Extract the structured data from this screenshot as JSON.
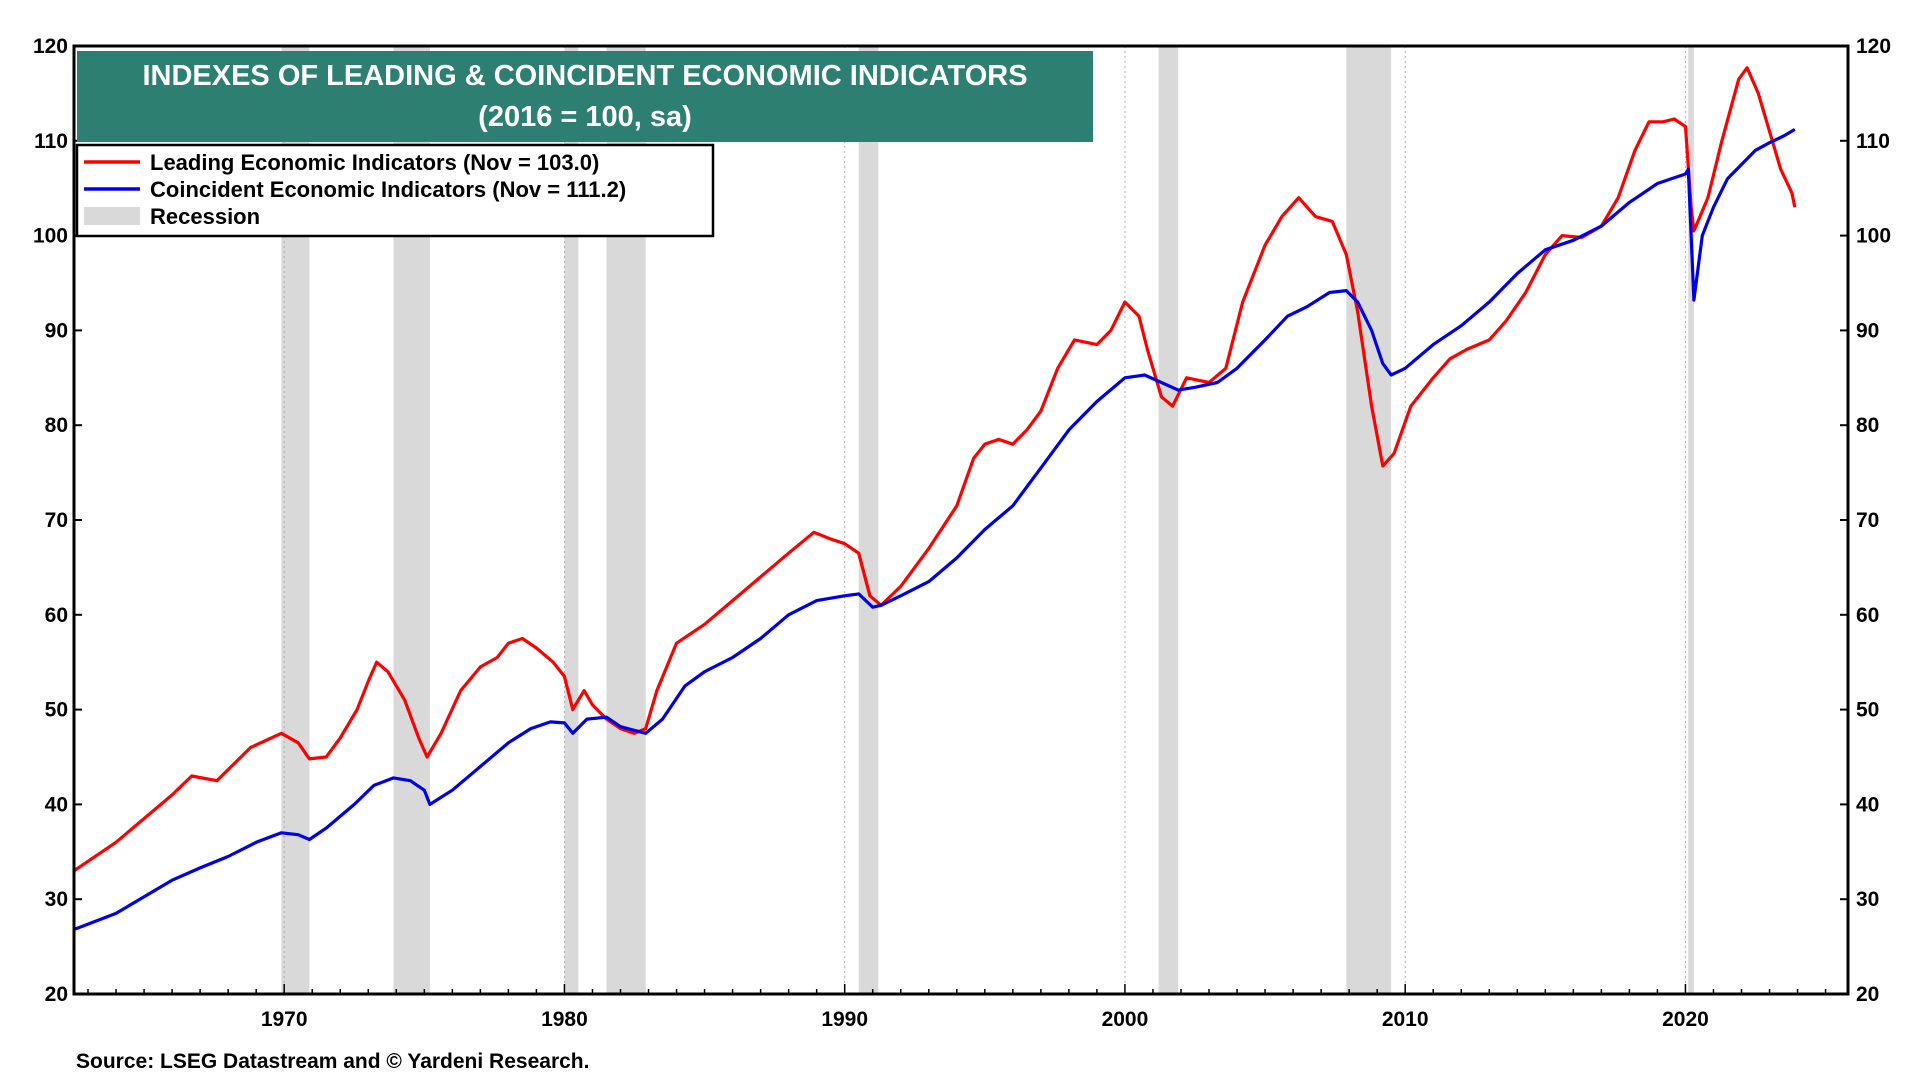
{
  "chart_data": {
    "type": "line",
    "title": "INDEXES OF LEADING & COINCIDENT ECONOMIC INDICATORS",
    "subtitle": "(2016 = 100, sa)",
    "xlabel": "",
    "ylabel": "",
    "xlim": [
      1962.5,
      2025.8
    ],
    "ylim": [
      20,
      120
    ],
    "y_ticks": [
      20,
      30,
      40,
      50,
      60,
      70,
      80,
      90,
      100,
      110,
      120
    ],
    "x_ticks": [
      1970,
      1980,
      1990,
      2000,
      2010,
      2020
    ],
    "x_tick_labels": [
      "1970",
      "1980",
      "1990",
      "2000",
      "2010",
      "2020"
    ],
    "grid": true,
    "legend_position": "top-left",
    "recession_label": "Recession",
    "recession_color": "#d9d9d9",
    "recessions": [
      [
        1969.9,
        1970.9
      ],
      [
        1973.9,
        1975.2
      ],
      [
        1980.0,
        1980.5
      ],
      [
        1981.5,
        1982.9
      ],
      [
        1990.5,
        1991.2
      ],
      [
        2001.2,
        2001.9
      ],
      [
        2007.9,
        2009.5
      ],
      [
        2020.1,
        2020.3
      ]
    ],
    "series": [
      {
        "name": "Leading Economic Indicators (Nov = 103.0)",
        "color": "#ff0000",
        "points": [
          [
            1962.5,
            33.0
          ],
          [
            1964,
            36.0
          ],
          [
            1966,
            41.0
          ],
          [
            1966.7,
            43.0
          ],
          [
            1967.6,
            42.5
          ],
          [
            1968.8,
            46.0
          ],
          [
            1969.9,
            47.5
          ],
          [
            1970.5,
            46.5
          ],
          [
            1970.9,
            44.8
          ],
          [
            1971.5,
            45.0
          ],
          [
            1972.0,
            47.0
          ],
          [
            1972.6,
            50.0
          ],
          [
            1973.0,
            53.0
          ],
          [
            1973.3,
            55.0
          ],
          [
            1973.7,
            54.0
          ],
          [
            1974.3,
            51.0
          ],
          [
            1974.8,
            47.0
          ],
          [
            1975.1,
            45.0
          ],
          [
            1975.6,
            47.5
          ],
          [
            1976.3,
            52.0
          ],
          [
            1977.0,
            54.5
          ],
          [
            1977.6,
            55.5
          ],
          [
            1978.0,
            57.0
          ],
          [
            1978.5,
            57.5
          ],
          [
            1979.0,
            56.5
          ],
          [
            1979.6,
            55.0
          ],
          [
            1980.0,
            53.5
          ],
          [
            1980.3,
            50.0
          ],
          [
            1980.7,
            52.0
          ],
          [
            1981.0,
            50.5
          ],
          [
            1981.5,
            49.0
          ],
          [
            1982.0,
            48.0
          ],
          [
            1982.5,
            47.5
          ],
          [
            1982.9,
            48.0
          ],
          [
            1983.3,
            52.0
          ],
          [
            1984.0,
            57.0
          ],
          [
            1985.0,
            59.0
          ],
          [
            1986.0,
            61.5
          ],
          [
            1987.0,
            64.0
          ],
          [
            1988.0,
            66.5
          ],
          [
            1988.9,
            68.7
          ],
          [
            1989.5,
            68.0
          ],
          [
            1990.0,
            67.5
          ],
          [
            1990.5,
            66.5
          ],
          [
            1990.9,
            62.0
          ],
          [
            1991.3,
            61.0
          ],
          [
            1992.0,
            63.0
          ],
          [
            1993.0,
            67.0
          ],
          [
            1994.0,
            71.5
          ],
          [
            1994.6,
            76.5
          ],
          [
            1995.0,
            78.0
          ],
          [
            1995.5,
            78.5
          ],
          [
            1996.0,
            78.0
          ],
          [
            1996.5,
            79.5
          ],
          [
            1997.0,
            81.5
          ],
          [
            1997.6,
            86.0
          ],
          [
            1998.2,
            89.0
          ],
          [
            1999.0,
            88.5
          ],
          [
            1999.5,
            90.0
          ],
          [
            2000.0,
            93.0
          ],
          [
            2000.5,
            91.5
          ],
          [
            2000.8,
            88.0
          ],
          [
            2001.3,
            83.0
          ],
          [
            2001.7,
            82.0
          ],
          [
            2002.2,
            85.0
          ],
          [
            2003.0,
            84.5
          ],
          [
            2003.6,
            86.0
          ],
          [
            2004.2,
            93.0
          ],
          [
            2005.0,
            99.0
          ],
          [
            2005.6,
            102.0
          ],
          [
            2006.2,
            104.0
          ],
          [
            2006.8,
            102.0
          ],
          [
            2007.4,
            101.5
          ],
          [
            2007.9,
            98.0
          ],
          [
            2008.3,
            92.0
          ],
          [
            2008.8,
            82.0
          ],
          [
            2009.2,
            75.7
          ],
          [
            2009.6,
            77.0
          ],
          [
            2010.2,
            82.0
          ],
          [
            2011.0,
            85.0
          ],
          [
            2011.6,
            87.0
          ],
          [
            2012.2,
            88.0
          ],
          [
            2013.0,
            89.0
          ],
          [
            2013.6,
            91.0
          ],
          [
            2014.3,
            94.0
          ],
          [
            2015.0,
            98.0
          ],
          [
            2015.6,
            100.0
          ],
          [
            2016.3,
            99.8
          ],
          [
            2017.0,
            101.0
          ],
          [
            2017.6,
            104.0
          ],
          [
            2018.2,
            109.0
          ],
          [
            2018.7,
            112.0
          ],
          [
            2019.2,
            112.0
          ],
          [
            2019.6,
            112.3
          ],
          [
            2020.0,
            111.5
          ],
          [
            2020.2,
            103.0
          ],
          [
            2020.3,
            100.5
          ],
          [
            2020.8,
            104.0
          ],
          [
            2021.3,
            110.0
          ],
          [
            2021.9,
            116.5
          ],
          [
            2022.2,
            117.7
          ],
          [
            2022.6,
            115.0
          ],
          [
            2023.0,
            111.0
          ],
          [
            2023.4,
            107.0
          ],
          [
            2023.8,
            104.5
          ],
          [
            2023.9,
            103.0
          ]
        ]
      },
      {
        "name": "Coincident Economic Indicators (Nov = 111.2)",
        "color": "#0000e6",
        "points": [
          [
            1962.5,
            26.8
          ],
          [
            1964,
            28.5
          ],
          [
            1966,
            32.0
          ],
          [
            1967,
            33.3
          ],
          [
            1968,
            34.5
          ],
          [
            1969,
            36.0
          ],
          [
            1969.9,
            37.0
          ],
          [
            1970.5,
            36.8
          ],
          [
            1970.9,
            36.3
          ],
          [
            1971.5,
            37.5
          ],
          [
            1972.5,
            40.0
          ],
          [
            1973.2,
            42.0
          ],
          [
            1973.9,
            42.8
          ],
          [
            1974.5,
            42.5
          ],
          [
            1975.0,
            41.5
          ],
          [
            1975.2,
            40.0
          ],
          [
            1976.0,
            41.5
          ],
          [
            1977.0,
            44.0
          ],
          [
            1978.0,
            46.5
          ],
          [
            1978.8,
            48.0
          ],
          [
            1979.5,
            48.7
          ],
          [
            1980.0,
            48.6
          ],
          [
            1980.3,
            47.5
          ],
          [
            1980.8,
            49.0
          ],
          [
            1981.5,
            49.2
          ],
          [
            1982.0,
            48.2
          ],
          [
            1982.9,
            47.5
          ],
          [
            1983.5,
            49.0
          ],
          [
            1984.3,
            52.5
          ],
          [
            1985.0,
            54.0
          ],
          [
            1986.0,
            55.5
          ],
          [
            1987.0,
            57.5
          ],
          [
            1988.0,
            60.0
          ],
          [
            1989.0,
            61.5
          ],
          [
            1990.0,
            62.0
          ],
          [
            1990.5,
            62.2
          ],
          [
            1991.0,
            60.8
          ],
          [
            1991.3,
            61.0
          ],
          [
            1992.0,
            62.0
          ],
          [
            1993.0,
            63.5
          ],
          [
            1994.0,
            66.0
          ],
          [
            1995.0,
            69.0
          ],
          [
            1996.0,
            71.5
          ],
          [
            1997.0,
            75.5
          ],
          [
            1998.0,
            79.5
          ],
          [
            1999.0,
            82.5
          ],
          [
            2000.0,
            85.0
          ],
          [
            2000.7,
            85.3
          ],
          [
            2001.3,
            84.5
          ],
          [
            2001.9,
            83.7
          ],
          [
            2002.5,
            84.0
          ],
          [
            2003.3,
            84.5
          ],
          [
            2004.0,
            86.0
          ],
          [
            2005.0,
            89.0
          ],
          [
            2005.8,
            91.5
          ],
          [
            2006.5,
            92.5
          ],
          [
            2007.3,
            94.0
          ],
          [
            2007.9,
            94.2
          ],
          [
            2008.3,
            93.0
          ],
          [
            2008.8,
            90.0
          ],
          [
            2009.2,
            86.5
          ],
          [
            2009.5,
            85.3
          ],
          [
            2010.0,
            86.0
          ],
          [
            2011.0,
            88.5
          ],
          [
            2012.0,
            90.5
          ],
          [
            2013.0,
            93.0
          ],
          [
            2014.0,
            96.0
          ],
          [
            2015.0,
            98.5
          ],
          [
            2016.0,
            99.5
          ],
          [
            2017.0,
            101.0
          ],
          [
            2018.0,
            103.5
          ],
          [
            2019.0,
            105.5
          ],
          [
            2020.0,
            106.5
          ],
          [
            2020.1,
            107.0
          ],
          [
            2020.3,
            93.2
          ],
          [
            2020.6,
            100.0
          ],
          [
            2021.0,
            103.0
          ],
          [
            2021.5,
            106.0
          ],
          [
            2022.0,
            107.5
          ],
          [
            2022.5,
            109.0
          ],
          [
            2023.0,
            109.8
          ],
          [
            2023.5,
            110.5
          ],
          [
            2023.9,
            111.2
          ]
        ]
      }
    ],
    "source": "Source: LSEG Datastream and © Yardeni Research."
  }
}
